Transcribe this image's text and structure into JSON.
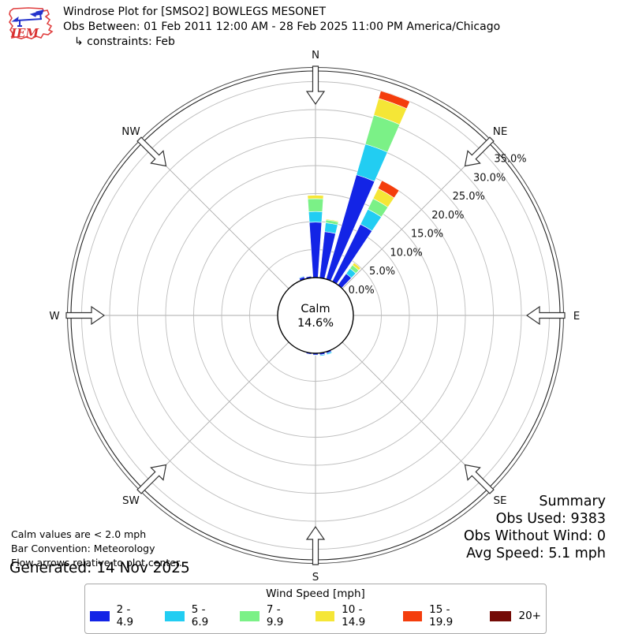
{
  "header": {
    "title": "Windrose Plot for [SMSO2] BOWLEGS MESONET",
    "obs_line": "Obs Between: 01 Feb 2011 12:00 AM - 28 Feb 2025 11:00 PM America/Chicago",
    "constraints_line": "↳ constraints: Feb",
    "logo_text": "IEM"
  },
  "notes": {
    "calm_note": "Calm values are < 2.0 mph",
    "convention_note": "Bar Convention: Meteorology",
    "arrows_note": "Flow arrows relative to plot center.",
    "generated": "Generated: 14 Nov 2025"
  },
  "summary": {
    "title": "Summary",
    "obs_used": "Obs Used: 9383",
    "obs_without_wind": "Obs Without Wind: 0",
    "avg_speed": "Avg Speed: 5.1 mph"
  },
  "legend": {
    "title": "Wind Speed [mph]"
  },
  "chart_data": {
    "type": "windrose-polar-stacked-bar",
    "units": "mph",
    "bar_convention": "Meteorology",
    "calm": {
      "label": "Calm",
      "pct_label": "14.6%",
      "pct": 14.6
    },
    "compass_labels": [
      "N",
      "NE",
      "E",
      "SE",
      "S",
      "SW",
      "W",
      "NW"
    ],
    "ring_percents": [
      5,
      10,
      15,
      20,
      25,
      30,
      35
    ],
    "ring_labels": [
      "0.0%",
      "5.0%",
      "10.0%",
      "15.0%",
      "20.0%",
      "25.0%",
      "30.0%",
      "35.0%"
    ],
    "rmax_pct": 37.5,
    "ring_label_angle_deg": 48,
    "sector_width_deg": 10,
    "speed_bins": [
      {
        "label": "2 - 4.9",
        "color": "#1324e6"
      },
      {
        "label": "5 - 6.9",
        "color": "#22cdf2"
      },
      {
        "label": "7 - 9.9",
        "color": "#7bf187"
      },
      {
        "label": "10 - 14.9",
        "color": "#f5e636"
      },
      {
        "label": "15 - 19.9",
        "color": "#f43d0c"
      },
      {
        "label": "20+",
        "color": "#740b06"
      }
    ],
    "petals": [
      {
        "dir_deg": 340,
        "pct_by_bin": [
          0.45,
          0.15,
          0,
          0,
          0,
          0
        ]
      },
      {
        "dir_deg": 350,
        "pct_by_bin": [
          0.3,
          0,
          0,
          0,
          0,
          0
        ]
      },
      {
        "dir_deg": 0,
        "pct_by_bin": [
          9.9,
          1.9,
          2.3,
          0.6,
          0,
          0
        ]
      },
      {
        "dir_deg": 10,
        "pct_by_bin": [
          8.3,
          1.6,
          0.5,
          0.15,
          0,
          0
        ]
      },
      {
        "dir_deg": 20,
        "pct_by_bin": [
          19.4,
          5.7,
          5.4,
          3.1,
          1.4,
          0
        ]
      },
      {
        "dir_deg": 30,
        "pct_by_bin": [
          11.4,
          3.0,
          2.1,
          2.0,
          1.6,
          0
        ]
      },
      {
        "dir_deg": 40,
        "pct_by_bin": [
          2.5,
          1.15,
          0.75,
          0.5,
          0,
          0
        ]
      },
      {
        "dir_deg": 160,
        "pct_by_bin": [
          0.3,
          0.25,
          0,
          0,
          0,
          0
        ]
      },
      {
        "dir_deg": 170,
        "pct_by_bin": [
          0.35,
          0.2,
          0,
          0,
          0,
          0
        ]
      },
      {
        "dir_deg": 180,
        "pct_by_bin": [
          0.3,
          0.1,
          0,
          0,
          0,
          0
        ]
      },
      {
        "dir_deg": 190,
        "pct_by_bin": [
          0.25,
          0,
          0,
          0,
          0,
          0
        ]
      }
    ]
  }
}
